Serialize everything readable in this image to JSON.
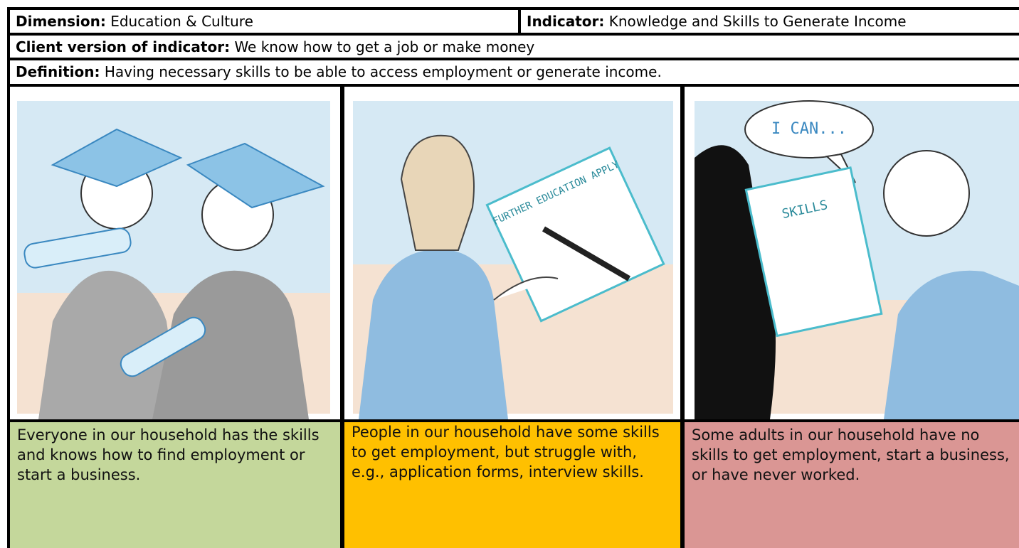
{
  "header": {
    "dimension": {
      "label": "Dimension:",
      "value": "Education & Culture"
    },
    "indicator": {
      "label": "Indicator:",
      "value": "Knowledge and Skills to Generate Income"
    }
  },
  "client_version": {
    "label": "Client version of indicator:",
    "value": "We know how to get a job or make money"
  },
  "definition": {
    "label": "Definition:",
    "value": "Having necessary skills to be able to access employment or generate income."
  },
  "levels": [
    {
      "text": "Everyone in our household has the skills and knows how to find employment or start a business."
    },
    {
      "text": "People in our household have some skills to get employment, but struggle with, e.g., application forms, interview skills.",
      "illustration_text": "FURTHER EDUCATION APPLY"
    },
    {
      "text": "Some adults in our household have no skills to get employment, start a business, or have never worked.",
      "illustration_text": [
        "I CAN...",
        "SKILLS"
      ]
    }
  ]
}
